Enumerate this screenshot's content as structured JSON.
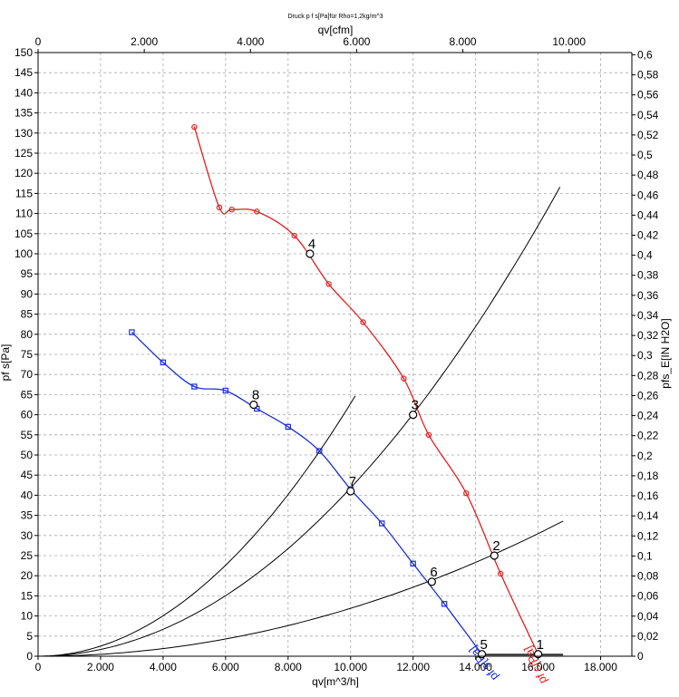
{
  "chart_data": {
    "type": "line",
    "title": "Druck p f s[Pa]für Rho=1,2kg/m^3",
    "xlabel": "qv[m^3/h]",
    "ylabel": "pf s[Pa]",
    "x2label": "qv[cfm]",
    "y2label": "pfs_E[IN H2O]",
    "xlim": [
      0,
      19000
    ],
    "ylim": [
      0,
      150
    ],
    "x2lim": [
      0,
      11183
    ],
    "y2lim": [
      0,
      0.6022
    ],
    "grid": true,
    "x_ticks": [
      "0",
      "2.000",
      "4.000",
      "6.000",
      "8.000",
      "10.000",
      "12.000",
      "14.000",
      "16.000",
      "18.000"
    ],
    "y_ticks": [
      "0",
      "5",
      "10",
      "15",
      "20",
      "25",
      "30",
      "35",
      "40",
      "45",
      "50",
      "55",
      "60",
      "65",
      "70",
      "75",
      "80",
      "85",
      "90",
      "95",
      "100",
      "105",
      "110",
      "115",
      "120",
      "125",
      "130",
      "135",
      "140",
      "145",
      "150"
    ],
    "x2_ticks": [
      "0",
      "2.000",
      "4.000",
      "6.000",
      "8.000",
      "10.000"
    ],
    "y2_ticks": [
      "0",
      "0,02",
      "0,04",
      "0,06",
      "0,08",
      "0,1",
      "0,12",
      "0,14",
      "0,16",
      "0,18",
      "0,2",
      "0,22",
      "0,24",
      "0,26",
      "0,28",
      "0,3",
      "0,32",
      "0,34",
      "0,36",
      "0,38",
      "0,4",
      "0,42",
      "0,44",
      "0,46",
      "0,48",
      "0,5",
      "0,52",
      "0,54",
      "0,56",
      "0,58",
      "0,6"
    ],
    "series": [
      {
        "name": "pf s[Pa]",
        "color": "#e02020",
        "marker": "circle",
        "x": [
          5000,
          5800,
          6200,
          7000,
          8200,
          9300,
          10400,
          11700,
          12500,
          13700,
          14800,
          16000
        ],
        "y": [
          131.5,
          111.5,
          111,
          110.5,
          104.5,
          92.5,
          83,
          69,
          55,
          40.5,
          20.5,
          0.5
        ]
      },
      {
        "name": "pf s[Pa]",
        "color": "#1a2fd0",
        "marker": "square",
        "x": [
          3000,
          4000,
          5000,
          6000,
          7000,
          8000,
          9000,
          10000,
          11000,
          12000,
          13000,
          14200
        ],
        "y": [
          80.5,
          73,
          67,
          66,
          61.5,
          57,
          51,
          41.5,
          33,
          23,
          13,
          0.5
        ]
      }
    ],
    "system_curves": [
      {
        "k": 6.28e-07,
        "x_max": 10150
      },
      {
        "k": 4.18e-07,
        "x_max": 16700
      },
      {
        "k": 1.19e-07,
        "x_max": 16800
      }
    ],
    "operating_points": [
      {
        "label": "1",
        "x": 16000,
        "y": 0.5
      },
      {
        "label": "2",
        "x": 14600,
        "y": 25
      },
      {
        "label": "3",
        "x": 12000,
        "y": 60
      },
      {
        "label": "4",
        "x": 8700,
        "y": 100
      },
      {
        "label": "5",
        "x": 14200,
        "y": 0.5
      },
      {
        "label": "6",
        "x": 12600,
        "y": 18.5
      },
      {
        "label": "7",
        "x": 10000,
        "y": 41
      },
      {
        "label": "8",
        "x": 6900,
        "y": 62.5
      }
    ]
  }
}
